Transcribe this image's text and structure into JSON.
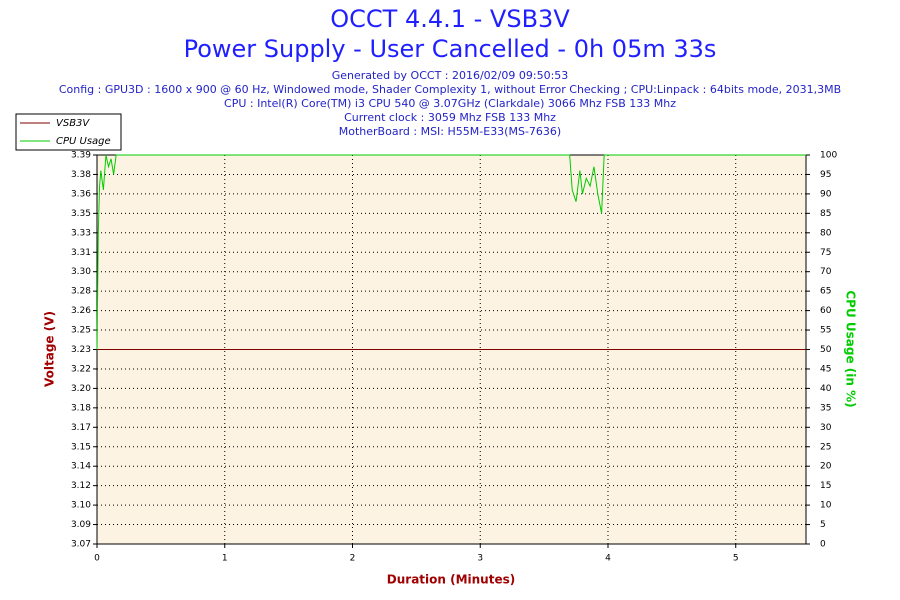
{
  "chart_data": {
    "type": "line",
    "title": "OCCT 4.4.1 - VSB3V",
    "subtitle": "Power Supply - User Cancelled - 0h 05m 33s",
    "info_lines": [
      "Generated by OCCT : 2016/02/09 09:50:53",
      "Config : GPU3D : 1600 x 900 @ 60 Hz, Windowed mode, Shader Complexity 1, without Error Checking ; CPU:Linpack : 64bits mode, 2031,3MB",
      "CPU : Intel(R) Core(TM) i3 CPU 540 @ 3.07GHz (Clarkdale) 3066 Mhz FSB 133 Mhz",
      "Current clock : 3059 Mhz FSB 133 Mhz",
      "MotherBoard : MSI: H55M-E33(MS-7636)"
    ],
    "xlabel": "Duration (Minutes)",
    "ylabel": "Voltage (V)",
    "y2label": "CPU Usage (in %)",
    "xlim": [
      0,
      5.55
    ],
    "xticks": [
      0,
      1,
      2,
      3,
      4,
      5
    ],
    "ylim": [
      3.0715,
      3.3935
    ],
    "yticks": [
      {
        "value": 3.0715,
        "label": "3.07"
      },
      {
        "value": 3.0876,
        "label": "3.09"
      },
      {
        "value": 3.1037,
        "label": "3.10"
      },
      {
        "value": 3.1198,
        "label": "3.12"
      },
      {
        "value": 3.1359,
        "label": "3.14"
      },
      {
        "value": 3.152,
        "label": "3.15"
      },
      {
        "value": 3.1681,
        "label": "3.17"
      },
      {
        "value": 3.1842,
        "label": "3.18"
      },
      {
        "value": 3.2003,
        "label": "3.20"
      },
      {
        "value": 3.2164,
        "label": "3.22"
      },
      {
        "value": 3.2325,
        "label": "3.23"
      },
      {
        "value": 3.2486,
        "label": "3.25"
      },
      {
        "value": 3.2647,
        "label": "3.26"
      },
      {
        "value": 3.2808,
        "label": "3.28"
      },
      {
        "value": 3.2969,
        "label": "3.30"
      },
      {
        "value": 3.313,
        "label": "3.31"
      },
      {
        "value": 3.3291,
        "label": "3.33"
      },
      {
        "value": 3.3452,
        "label": "3.35"
      },
      {
        "value": 3.3613,
        "label": "3.36"
      },
      {
        "value": 3.3774,
        "label": "3.38"
      },
      {
        "value": 3.3935,
        "label": "3.39"
      }
    ],
    "y2lim": [
      0,
      100
    ],
    "y2ticks": [
      0,
      5,
      10,
      15,
      20,
      25,
      30,
      35,
      40,
      45,
      50,
      55,
      60,
      65,
      70,
      75,
      80,
      85,
      90,
      95,
      100
    ],
    "grid": true,
    "legend": "upper left",
    "series": [
      {
        "name": "VSB3V",
        "color": "#800000",
        "x": [
          0,
          5.55
        ],
        "values": [
          3.2325,
          3.2325
        ]
      },
      {
        "name": "CPU Usage",
        "color": "#00cc00",
        "axis": "y2",
        "x": [
          0,
          0.01,
          0.02,
          0.03,
          0.05,
          0.07,
          0.09,
          0.11,
          0.13,
          0.15,
          3.7,
          3.72,
          3.75,
          3.78,
          3.8,
          3.83,
          3.86,
          3.89,
          3.92,
          3.95,
          3.97,
          5.55
        ],
        "values": [
          50,
          80,
          92,
          96,
          91,
          100,
          97,
          99,
          95,
          100,
          100,
          91,
          88,
          96,
          90,
          94,
          92,
          97,
          90,
          85,
          100,
          100
        ]
      }
    ]
  }
}
